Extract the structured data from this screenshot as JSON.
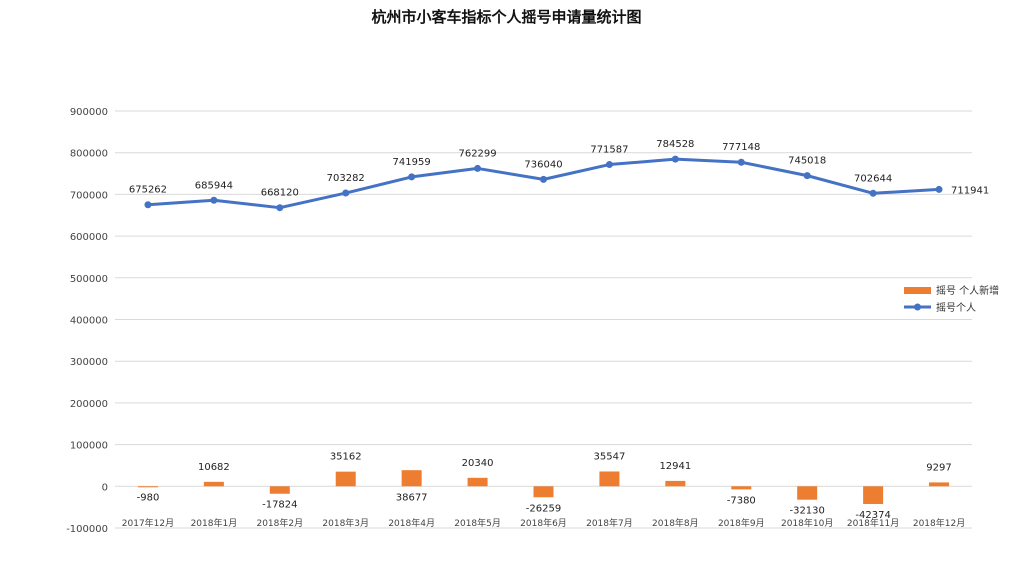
{
  "colors": {
    "line": "#4472c4",
    "bar": "#ed7d31",
    "grid": "#d9d9d9"
  },
  "chart_data": {
    "type": "bar+line",
    "title": "杭州市小客车指标个人摇号申请量统计图",
    "categories": [
      "2017年12月",
      "2018年1月",
      "2018年2月",
      "2018年3月",
      "2018年4月",
      "2018年5月",
      "2018年6月",
      "2018年7月",
      "2018年8月",
      "2018年9月",
      "2018年10月",
      "2018年11月",
      "2018年12月"
    ],
    "series": [
      {
        "name": "摇号 个人新增",
        "type": "bar",
        "values": [
          -980,
          10682,
          -17824,
          35162,
          38677,
          20340,
          -26259,
          35547,
          12941,
          -7380,
          -32130,
          -42374,
          9297
        ]
      },
      {
        "name": "摇号个人",
        "type": "line",
        "values": [
          675262,
          685944,
          668120,
          703282,
          741959,
          762299,
          736040,
          771587,
          784528,
          777148,
          745018,
          702644,
          711941
        ]
      }
    ],
    "yticks": [
      "900000",
      "800000",
      "700000",
      "600000",
      "500000",
      "400000",
      "300000",
      "200000",
      "100000",
      "0",
      "-100000"
    ],
    "ylim": [
      -100000,
      900000
    ],
    "grid": true,
    "legend": "right"
  }
}
